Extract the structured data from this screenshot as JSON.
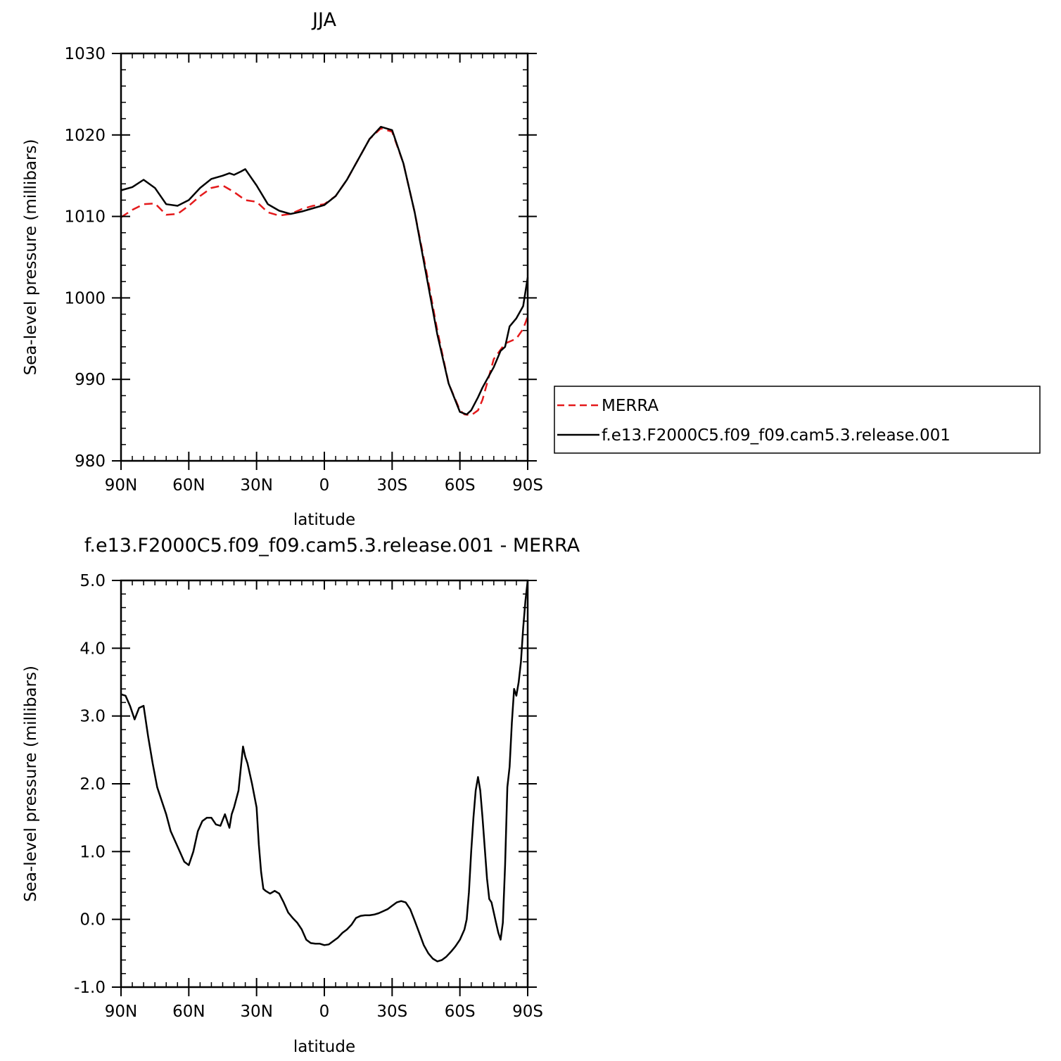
{
  "chart_data": [
    {
      "type": "line",
      "title": "JJA",
      "xlabel": "latitude",
      "ylabel": "Sea-level pressure (millibars)",
      "xlim": [
        90,
        -90
      ],
      "ylim": [
        980,
        1030
      ],
      "x_ticks": [
        {
          "value": 90,
          "label": "90N"
        },
        {
          "value": 60,
          "label": "60N"
        },
        {
          "value": 30,
          "label": "30N"
        },
        {
          "value": 0,
          "label": "0"
        },
        {
          "value": -30,
          "label": "30S"
        },
        {
          "value": -60,
          "label": "60S"
        },
        {
          "value": -90,
          "label": "90S"
        }
      ],
      "y_ticks": [
        {
          "value": 980,
          "label": "980"
        },
        {
          "value": 990,
          "label": "990"
        },
        {
          "value": 1000,
          "label": "1000"
        },
        {
          "value": 1010,
          "label": "1010"
        },
        {
          "value": 1020,
          "label": "1020"
        },
        {
          "value": 1030,
          "label": "1030"
        }
      ],
      "legend": {
        "position": "right",
        "entries": [
          "MERRA",
          "f.e13.F2000C5.f09_f09.cam5.3.release.001"
        ]
      },
      "series": [
        {
          "name": "MERRA",
          "color": "#e41a1c",
          "dash": true,
          "x": [
            90,
            85,
            80,
            75,
            70,
            65,
            60,
            55,
            50,
            45,
            40,
            35,
            30,
            25,
            20,
            15,
            10,
            5,
            0,
            -5,
            -10,
            -15,
            -20,
            -25,
            -30,
            -35,
            -40,
            -45,
            -50,
            -55,
            -60,
            -62,
            -65,
            -68,
            -70,
            -75,
            -80,
            -85,
            -88,
            -90
          ],
          "y": [
            1009.9,
            1010.8,
            1011.5,
            1011.6,
            1010.2,
            1010.3,
            1011.3,
            1012.5,
            1013.5,
            1013.8,
            1013.0,
            1012.0,
            1011.8,
            1010.5,
            1010.1,
            1010.3,
            1010.9,
            1011.3,
            1011.5,
            1012.5,
            1014.5,
            1017.0,
            1019.5,
            1020.8,
            1020.4,
            1016.5,
            1010.5,
            1003.5,
            996.0,
            989.5,
            986.2,
            985.7,
            985.6,
            986.2,
            987.5,
            992.5,
            994.4,
            995.0,
            996.2,
            997.7
          ]
        },
        {
          "name": "f.e13.F2000C5.f09_f09.cam5.3.release.001",
          "color": "#000000",
          "dash": false,
          "x": [
            90,
            85,
            80,
            75,
            70,
            65,
            60,
            55,
            50,
            45,
            42,
            40,
            37,
            35,
            33,
            30,
            25,
            20,
            15,
            10,
            5,
            0,
            -5,
            -10,
            -15,
            -20,
            -25,
            -30,
            -35,
            -40,
            -45,
            -50,
            -55,
            -60,
            -63,
            -65,
            -68,
            -70,
            -72,
            -75,
            -78,
            -80,
            -82,
            -85,
            -88,
            -90
          ],
          "y": [
            1013.2,
            1013.6,
            1014.5,
            1013.5,
            1011.5,
            1011.3,
            1012.0,
            1013.5,
            1014.6,
            1015.0,
            1015.3,
            1015.1,
            1015.5,
            1015.8,
            1015.0,
            1013.8,
            1011.5,
            1010.7,
            1010.3,
            1010.6,
            1011.0,
            1011.4,
            1012.5,
            1014.5,
            1017.0,
            1019.5,
            1021.0,
            1020.6,
            1016.5,
            1010.5,
            1003.0,
            995.5,
            989.5,
            986.0,
            985.7,
            986.2,
            987.8,
            989.0,
            990.0,
            991.5,
            993.5,
            994.0,
            996.5,
            997.5,
            999.0,
            1002.5
          ]
        }
      ]
    },
    {
      "type": "line",
      "title": "f.e13.F2000C5.f09_f09.cam5.3.release.001 - MERRA",
      "xlabel": "latitude",
      "ylabel": "Sea-level pressure (millibars)",
      "xlim": [
        90,
        -90
      ],
      "ylim": [
        -1.0,
        5.0
      ],
      "x_ticks": [
        {
          "value": 90,
          "label": "90N"
        },
        {
          "value": 60,
          "label": "60N"
        },
        {
          "value": 30,
          "label": "30N"
        },
        {
          "value": 0,
          "label": "0"
        },
        {
          "value": -30,
          "label": "30S"
        },
        {
          "value": -60,
          "label": "60S"
        },
        {
          "value": -90,
          "label": "90S"
        }
      ],
      "y_ticks": [
        {
          "value": -1.0,
          "label": "-1.0"
        },
        {
          "value": 0.0,
          "label": "0.0"
        },
        {
          "value": 1.0,
          "label": "1.0"
        },
        {
          "value": 2.0,
          "label": "2.0"
        },
        {
          "value": 3.0,
          "label": "3.0"
        },
        {
          "value": 4.0,
          "label": "4.0"
        },
        {
          "value": 5.0,
          "label": "5.0"
        }
      ],
      "series": [
        {
          "color": "#000000",
          "dash": false,
          "x": [
            90,
            88,
            86,
            84,
            82,
            80,
            78,
            76,
            74,
            72,
            70,
            68,
            66,
            64,
            62,
            60,
            58,
            56,
            54,
            52,
            50,
            48,
            46,
            44,
            42,
            41,
            40,
            38,
            36,
            35,
            34,
            32,
            30,
            29,
            28,
            27,
            26,
            24,
            22,
            20,
            18,
            16,
            14,
            12,
            10,
            8,
            6,
            4,
            2,
            0,
            -2,
            -4,
            -6,
            -8,
            -10,
            -12,
            -14,
            -16,
            -18,
            -20,
            -22,
            -24,
            -26,
            -28,
            -30,
            -32,
            -34,
            -36,
            -38,
            -40,
            -42,
            -44,
            -46,
            -48,
            -50,
            -52,
            -54,
            -56,
            -58,
            -60,
            -62,
            -63,
            -64,
            -65,
            -66,
            -67,
            -68,
            -69,
            -70,
            -71,
            -72,
            -73,
            -74,
            -75,
            -76,
            -77,
            -78,
            -79,
            -80,
            -81,
            -82,
            -83,
            -84,
            -85,
            -86,
            -87,
            -88,
            -89,
            -90
          ],
          "y": [
            3.32,
            3.3,
            3.15,
            2.95,
            3.12,
            3.15,
            2.7,
            2.3,
            1.95,
            1.75,
            1.55,
            1.3,
            1.15,
            1.0,
            0.85,
            0.8,
            1.0,
            1.3,
            1.45,
            1.5,
            1.5,
            1.4,
            1.38,
            1.55,
            1.35,
            1.55,
            1.65,
            1.9,
            2.55,
            2.4,
            2.3,
            2.0,
            1.65,
            1.1,
            0.7,
            0.45,
            0.42,
            0.38,
            0.42,
            0.38,
            0.25,
            0.1,
            0.02,
            -0.05,
            -0.15,
            -0.3,
            -0.35,
            -0.36,
            -0.36,
            -0.38,
            -0.37,
            -0.32,
            -0.27,
            -0.2,
            -0.15,
            -0.08,
            0.02,
            0.05,
            0.06,
            0.06,
            0.07,
            0.09,
            0.12,
            0.15,
            0.2,
            0.25,
            0.27,
            0.25,
            0.15,
            -0.02,
            -0.2,
            -0.38,
            -0.5,
            -0.58,
            -0.62,
            -0.6,
            -0.55,
            -0.48,
            -0.4,
            -0.3,
            -0.15,
            0.0,
            0.4,
            1.0,
            1.5,
            1.9,
            2.1,
            1.9,
            1.5,
            1.05,
            0.6,
            0.3,
            0.25,
            0.1,
            -0.05,
            -0.2,
            -0.3,
            -0.05,
            0.8,
            1.95,
            2.25,
            2.9,
            3.4,
            3.3,
            3.5,
            3.8,
            4.3,
            4.7,
            5.0
          ]
        }
      ]
    }
  ]
}
